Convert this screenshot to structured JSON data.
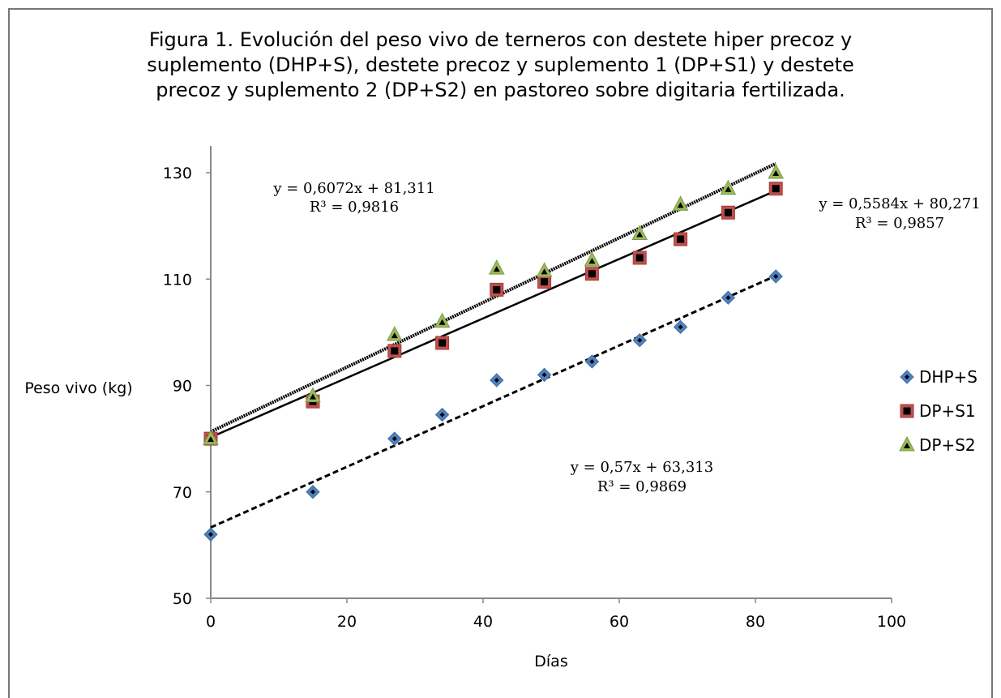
{
  "chart_data": {
    "type": "scatter",
    "title_lines": [
      "Figura  1. Evolución del peso vivo de terneros con destete hiper precoz y",
      "suplemento (DHP+S), destete precoz y suplemento 1 (DP+S1) y destete",
      "precoz y suplemento 2 (DP+S2) en pastoreo sobre digitaria fertilizada."
    ],
    "xlabel": "Días",
    "ylabel": "Peso vivo (kg)",
    "xlim": [
      0,
      100
    ],
    "ylim": [
      50,
      140
    ],
    "xticks": [
      "0",
      "20",
      "40",
      "60",
      "80",
      "100"
    ],
    "yticks": [
      "50",
      "70",
      "90",
      "110",
      "130"
    ],
    "legend_position": "right",
    "grid": false,
    "series": [
      {
        "name": "DHP+S",
        "marker": "diamond",
        "color": "#4f81bd",
        "points": [
          [
            0,
            62
          ],
          [
            15,
            70
          ],
          [
            27,
            80
          ],
          [
            34,
            84.5
          ],
          [
            42,
            91
          ],
          [
            49,
            92
          ],
          [
            56,
            94.5
          ],
          [
            63,
            98.5
          ],
          [
            69,
            101
          ],
          [
            76,
            106.5
          ],
          [
            83,
            110.5
          ]
        ],
        "trendline": {
          "slope": 0.57,
          "intercept": 63.313,
          "style": "dashed"
        },
        "equation": "y = 0,57x + 63,313",
        "r2": "R³ = 0,9869"
      },
      {
        "name": "DP+S1",
        "marker": "square",
        "color": "#c0504d",
        "points": [
          [
            0,
            80
          ],
          [
            15,
            87
          ],
          [
            27,
            96.5
          ],
          [
            34,
            98
          ],
          [
            42,
            108
          ],
          [
            49,
            109.5
          ],
          [
            56,
            111
          ],
          [
            63,
            114
          ],
          [
            69,
            117.5
          ],
          [
            76,
            122.5
          ],
          [
            83,
            127
          ]
        ],
        "trendline": {
          "slope": 0.5584,
          "intercept": 80.271,
          "style": "solid"
        },
        "equation": "y = 0,5584x + 80,271",
        "r2": "R³ = 0,9857"
      },
      {
        "name": "DP+S2",
        "marker": "triangle",
        "color": "#9bbb59",
        "points": [
          [
            0,
            80
          ],
          [
            15,
            88
          ],
          [
            27,
            99.5
          ],
          [
            34,
            102
          ],
          [
            42,
            112
          ],
          [
            49,
            111.5
          ],
          [
            56,
            113.5
          ],
          [
            63,
            118.5
          ],
          [
            69,
            124
          ],
          [
            76,
            127
          ],
          [
            83,
            130
          ]
        ],
        "trendline": {
          "slope": 0.6072,
          "intercept": 81.311,
          "style": "dotted"
        },
        "equation": "y = 0,6072x + 81,311",
        "r2": "R³ = 0,9816"
      }
    ]
  }
}
